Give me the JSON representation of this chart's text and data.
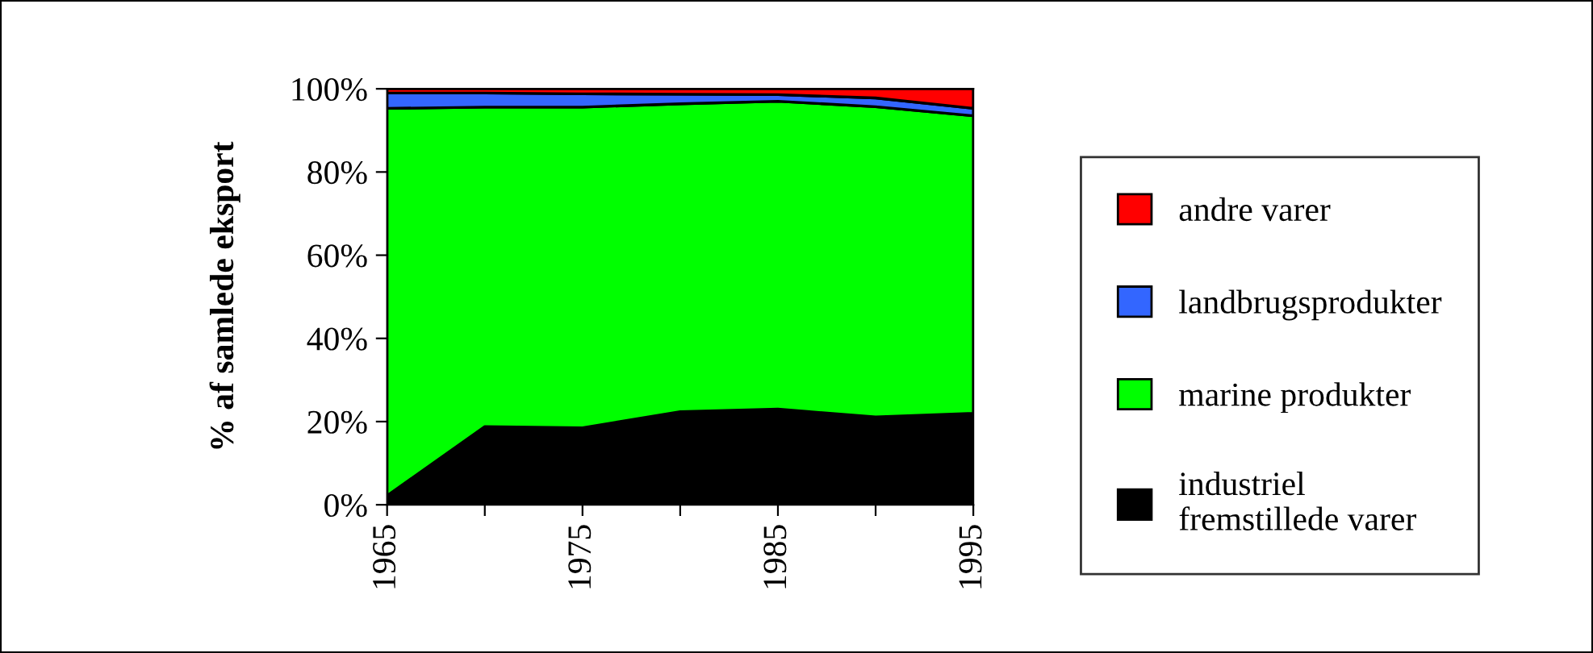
{
  "chart_data": {
    "type": "area",
    "stacked": true,
    "ylabel": "% af samlede eksport",
    "x": [
      1965,
      1970,
      1975,
      1980,
      1985,
      1990,
      1995
    ],
    "series": [
      {
        "name": "industriel\nfremstillede varer",
        "color": "#000000",
        "values": [
          2.2,
          18.8,
          18.5,
          22.4,
          23.0,
          21.1,
          22.0
        ]
      },
      {
        "name": "marine produkter",
        "color": "#00ff00",
        "values": [
          93.1,
          76.8,
          77.1,
          74.0,
          74.0,
          74.6,
          71.5
        ]
      },
      {
        "name": "landbrugsprodukter",
        "color": "#3366ff",
        "values": [
          3.7,
          3.4,
          3.2,
          2.3,
          1.6,
          2.1,
          1.8
        ]
      },
      {
        "name": "andre varer",
        "color": "#ff0000",
        "values": [
          1.0,
          1.0,
          1.2,
          1.3,
          1.4,
          2.2,
          4.7
        ]
      }
    ],
    "xlim": [
      1965,
      1995
    ],
    "xticks": [
      1965,
      {
        "value": 1970,
        "label": null
      },
      1975,
      {
        "value": 1980,
        "label": null
      },
      1985,
      {
        "value": 1990,
        "label": null
      },
      1995
    ],
    "ylim": [
      0,
      100
    ],
    "yticks": [
      {
        "value": 0,
        "label": "0%"
      },
      {
        "value": 20,
        "label": "20%"
      },
      {
        "value": 40,
        "label": "40%"
      },
      {
        "value": 60,
        "label": "60%"
      },
      {
        "value": 80,
        "label": "80%"
      },
      {
        "value": 100,
        "label": "100%"
      }
    ],
    "grid": false,
    "legend": "right"
  }
}
